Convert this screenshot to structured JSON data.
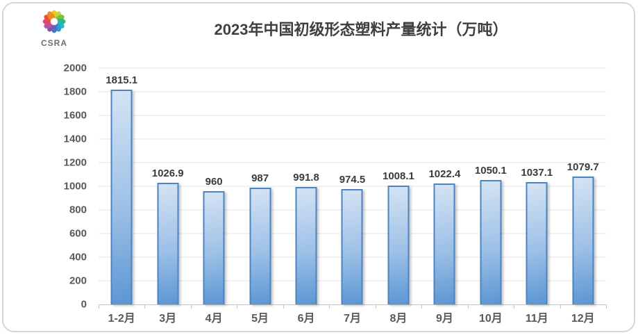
{
  "logo": {
    "text": "CSRA",
    "petal_colors": [
      "#f2c811",
      "#c5d633",
      "#7fc241",
      "#33b573",
      "#27b6c9",
      "#2d9bd2",
      "#4f6fc0",
      "#7e57ad",
      "#b254a6",
      "#e0457b",
      "#e8503a",
      "#f08b1d"
    ]
  },
  "chart_data": {
    "type": "bar",
    "title": "2023年中国初级形态塑料产量统计（万吨）",
    "categories": [
      "1-2月",
      "3月",
      "4月",
      "5月",
      "6月",
      "7月",
      "8月",
      "9月",
      "10月",
      "11月",
      "12月"
    ],
    "values": [
      1815.1,
      1026.9,
      960,
      987,
      991.8,
      974.5,
      1008.1,
      1022.4,
      1050.1,
      1037.1,
      1079.7
    ],
    "value_labels": [
      "1815.1",
      "1026.9",
      "960",
      "987",
      "991.8",
      "974.5",
      "1008.1",
      "1022.4",
      "1050.1",
      "1037.1",
      "1079.7"
    ],
    "xlabel": "",
    "ylabel": "",
    "ylim": [
      0,
      2000
    ],
    "ytick_step": 200,
    "ytick_labels": [
      "0",
      "200",
      "400",
      "600",
      "800",
      "1000",
      "1200",
      "1400",
      "1600",
      "1800",
      "2000"
    ],
    "grid": true,
    "legend": false,
    "colors": {
      "bar_gradient_top": "#d4e3f4",
      "bar_gradient_mid": "#9dc0e7",
      "bar_gradient_bottom": "#5b96d2",
      "bar_border": "#4b83c3",
      "gridline": "#e3e3e3",
      "axis_line": "#c4c4c4",
      "title_text": "#3f3f3f",
      "value_label_text": "#3b3b3b",
      "axis_label_text": "#595959",
      "card_border": "#d6d6d6",
      "logo_text": "#6d6e71"
    }
  }
}
